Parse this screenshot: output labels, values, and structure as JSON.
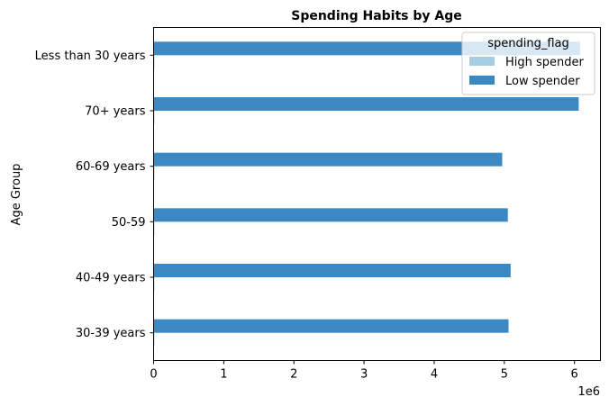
{
  "chart_data": {
    "type": "bar",
    "orientation": "horizontal",
    "title": "Spending Habits by Age",
    "xlabel": "",
    "ylabel": "Age Group",
    "x_scale_label": "1e6",
    "xlim": [
      0,
      6.37
    ],
    "x_ticks": [
      0,
      1,
      2,
      3,
      4,
      5,
      6
    ],
    "categories": [
      "30-39 years",
      "40-49 years",
      "50-59",
      "60-69 years",
      "70+ years",
      "Less than 30 years"
    ],
    "series": [
      {
        "name": "High spender",
        "color": "#a6cde2",
        "values": [
          0.005,
          0.005,
          0.005,
          0.004,
          0.005,
          0.005
        ]
      },
      {
        "name": "Low spender",
        "color": "#3a89c3",
        "values": [
          5.06,
          5.09,
          5.05,
          4.97,
          6.06,
          6.08
        ]
      }
    ],
    "legend": {
      "title": "spending_flag",
      "placement": "top-right"
    },
    "grid": false
  }
}
